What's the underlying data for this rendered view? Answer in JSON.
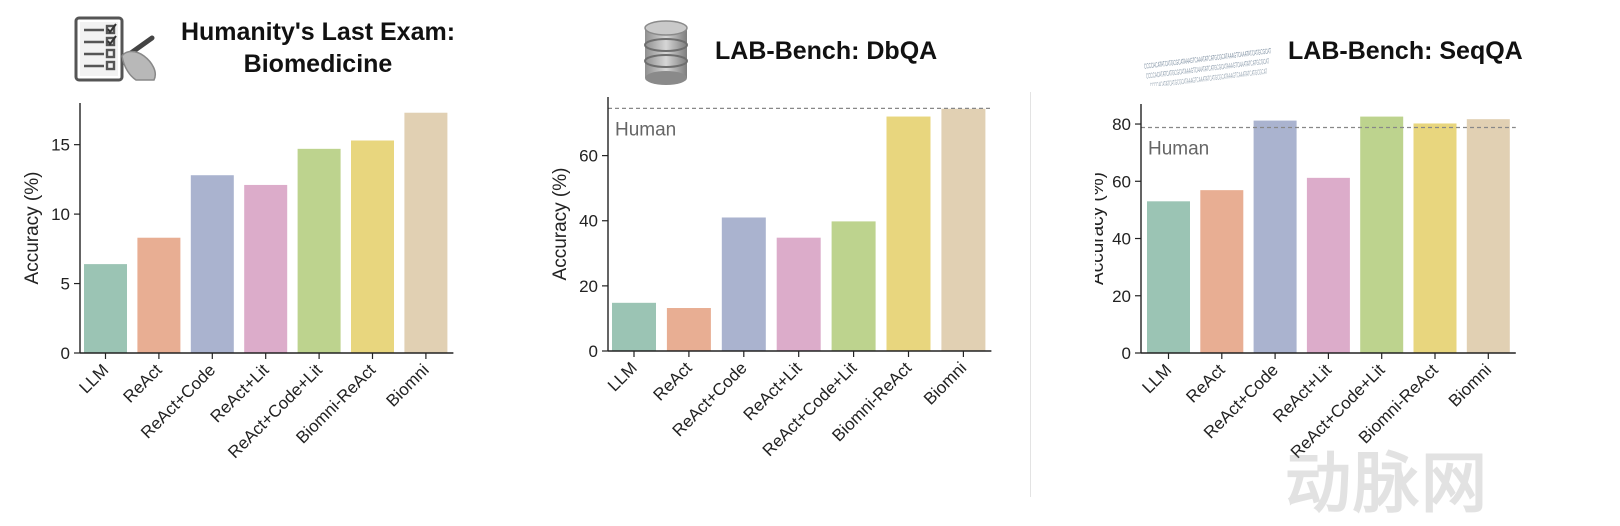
{
  "chart_data": [
    {
      "type": "bar",
      "title_lines": [
        "Humanity's Last Exam:",
        "Biomedicine"
      ],
      "icon": "checklist-clipboard-icon",
      "categories": [
        "LLM",
        "ReAct",
        "ReAct+Code",
        "ReAct+Lit",
        "ReAct+Code+Lit",
        "Biomni-ReAct",
        "Biomni"
      ],
      "values": [
        6.4,
        8.3,
        12.8,
        12.1,
        14.7,
        15.3,
        17.3
      ],
      "ylabel": "Accuracy (%)",
      "ylim": [
        0,
        18
      ],
      "yticks": [
        0,
        5,
        10,
        15
      ],
      "grid": false
    },
    {
      "type": "bar",
      "title_lines": [
        "LAB-Bench: DbQA"
      ],
      "icon": "database-icon",
      "categories": [
        "LLM",
        "ReAct",
        "ReAct+Code",
        "ReAct+Lit",
        "ReAct+Code+Lit",
        "Biomni-ReAct",
        "Biomni"
      ],
      "values": [
        14.8,
        13.2,
        41.0,
        34.8,
        39.8,
        72.0,
        74.4
      ],
      "ylabel": "Accuracy (%)",
      "ylim": [
        0,
        78
      ],
      "yticks": [
        0,
        20,
        40,
        60
      ],
      "reference_line": {
        "value": 74.5,
        "label": "Human"
      },
      "grid": false
    },
    {
      "type": "bar",
      "title_lines": [
        "LAB-Bench: SeqQA"
      ],
      "icon": "dna-sequence-icon",
      "categories": [
        "LLM",
        "ReAct",
        "ReAct+Code",
        "ReAct+Lit",
        "ReAct+Code+Lit",
        "Biomni-ReAct",
        "Biomni"
      ],
      "values": [
        53.0,
        56.9,
        81.2,
        61.2,
        82.6,
        80.2,
        81.7
      ],
      "ylabel": "Accuracy (%)",
      "ylim": [
        0,
        87
      ],
      "yticks": [
        0,
        20,
        40,
        60,
        80
      ],
      "reference_line": {
        "value": 78.8,
        "label": "Human"
      },
      "grid": false
    }
  ],
  "colors": [
    "#9bc4b4",
    "#e8ae93",
    "#aab3cf",
    "#dcacca",
    "#bdd38e",
    "#e8d67e",
    "#e1d0b3"
  ],
  "watermark": "动脉网",
  "dna_letters": "CCCCACATATCATGCGCATAAAGTCAAATATCATGCGCATAAAGTCAAATATCATGCGCAT"
}
